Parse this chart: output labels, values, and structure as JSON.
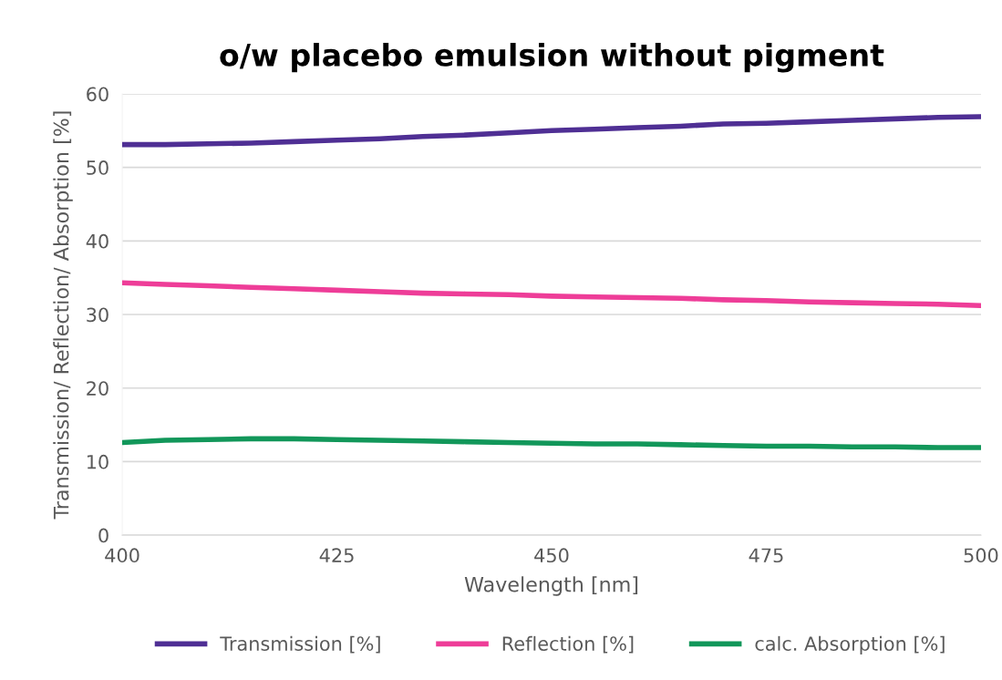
{
  "chart_data": {
    "type": "line",
    "title": "o/w placebo emulsion without pigment",
    "xlabel": "Wavelength [nm]",
    "ylabel": "Transmission/ Reflection/ Absorption [%]",
    "x": [
      400,
      405,
      410,
      415,
      420,
      425,
      430,
      435,
      440,
      445,
      450,
      455,
      460,
      465,
      470,
      475,
      480,
      485,
      490,
      495,
      500
    ],
    "series": [
      {
        "name": "Transmission [%]",
        "color": "#4f2f94",
        "values": [
          53.1,
          53.1,
          53.2,
          53.3,
          53.5,
          53.7,
          53.9,
          54.2,
          54.4,
          54.7,
          55.0,
          55.2,
          55.4,
          55.6,
          55.9,
          56.0,
          56.2,
          56.4,
          56.6,
          56.8,
          56.9
        ]
      },
      {
        "name": "Reflection [%]",
        "color": "#ee3d98",
        "values": [
          34.3,
          34.1,
          33.9,
          33.7,
          33.5,
          33.3,
          33.1,
          32.9,
          32.8,
          32.7,
          32.5,
          32.4,
          32.3,
          32.2,
          32.0,
          31.9,
          31.7,
          31.6,
          31.5,
          31.4,
          31.2
        ]
      },
      {
        "name": "calc. Absorption [%]",
        "color": "#12975a",
        "values": [
          12.6,
          12.9,
          13.0,
          13.1,
          13.1,
          13.0,
          12.9,
          12.8,
          12.7,
          12.6,
          12.5,
          12.4,
          12.4,
          12.3,
          12.2,
          12.1,
          12.1,
          12.0,
          12.0,
          11.9,
          11.9
        ]
      }
    ],
    "xlim": [
      400,
      500
    ],
    "xticks": [
      400,
      425,
      450,
      475,
      500
    ],
    "ylim": [
      0,
      60
    ],
    "yticks": [
      0,
      10,
      20,
      30,
      40,
      50,
      60
    ],
    "grid": "y",
    "legend": "bottom",
    "line_style": "solid",
    "marker": "none"
  }
}
